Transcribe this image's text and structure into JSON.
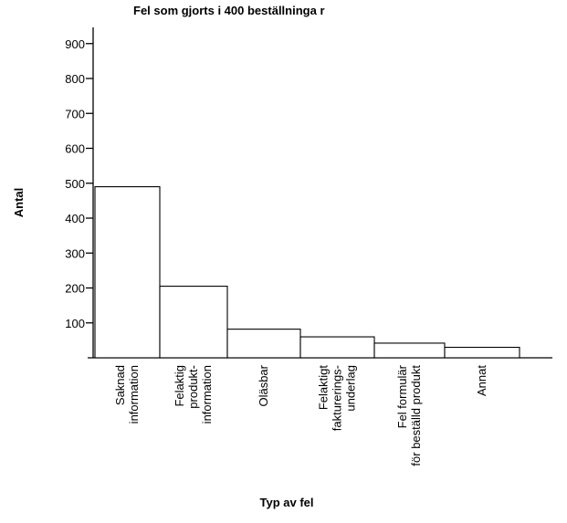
{
  "chart_data": {
    "type": "bar",
    "title": "Fel som gjorts i 400 beställninga r",
    "xlabel": "Typ av fel",
    "ylabel": "Antal",
    "ylim": [
      0,
      950
    ],
    "yticks": [
      100,
      200,
      300,
      400,
      500,
      600,
      700,
      800,
      900
    ],
    "grid": false,
    "categories": [
      [
        "Saknad",
        "information"
      ],
      [
        "Felaktig",
        "produkt-",
        "information"
      ],
      [
        "Oläsbar"
      ],
      [
        "Felaktigt",
        "fakturerings-",
        "underlag"
      ],
      [
        "Fel formulär",
        "för beställd  produkt"
      ],
      [
        "Annat"
      ]
    ],
    "values": [
      490,
      205,
      82,
      60,
      42,
      30
    ]
  }
}
